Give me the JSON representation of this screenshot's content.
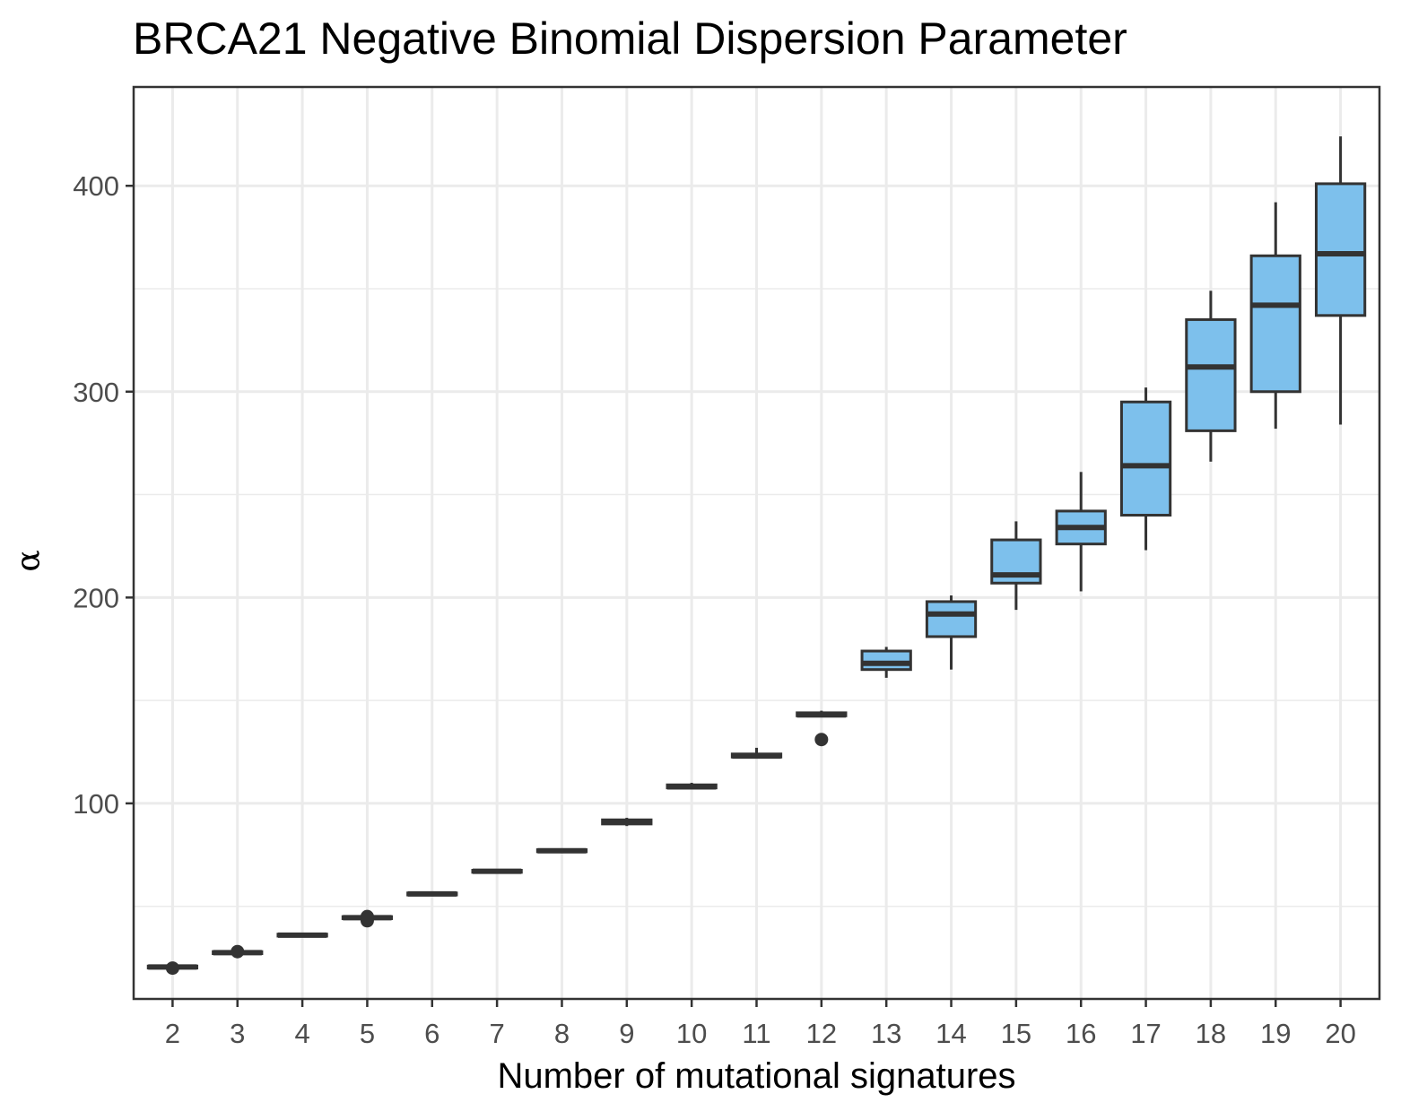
{
  "chart_data": {
    "type": "box",
    "title": "BRCA21 Negative Binomial Dispersion Parameter",
    "xlabel": "Number of mutational signatures",
    "ylabel": "α",
    "ylim": [
      5,
      448
    ],
    "yticks": [
      100,
      200,
      300,
      400
    ],
    "ytick_labels": [
      "100",
      "200",
      "300",
      "400"
    ],
    "grid": true,
    "fill_color": "#7dc0ec",
    "line_color": "#333333",
    "categories": [
      "2",
      "3",
      "4",
      "5",
      "6",
      "7",
      "8",
      "9",
      "10",
      "11",
      "12",
      "13",
      "14",
      "15",
      "16",
      "17",
      "18",
      "19",
      "20"
    ],
    "boxes": [
      {
        "x": "2",
        "min": 19,
        "q1": 20,
        "median": 20.5,
        "q3": 21,
        "max": 22,
        "outliers": [
          20
        ]
      },
      {
        "x": "3",
        "min": 26,
        "q1": 27,
        "median": 27.5,
        "q3": 28,
        "max": 29,
        "outliers": [
          28
        ]
      },
      {
        "x": "4",
        "min": 35,
        "q1": 35.5,
        "median": 36,
        "q3": 36.5,
        "max": 37,
        "outliers": []
      },
      {
        "x": "5",
        "min": 43,
        "q1": 44,
        "median": 44.5,
        "q3": 45,
        "max": 46,
        "outliers": [
          43,
          45
        ]
      },
      {
        "x": "6",
        "min": 55,
        "q1": 55.5,
        "median": 56,
        "q3": 56.5,
        "max": 57,
        "outliers": []
      },
      {
        "x": "7",
        "min": 66,
        "q1": 66.5,
        "median": 67,
        "q3": 67.5,
        "max": 68,
        "outliers": []
      },
      {
        "x": "8",
        "min": 76,
        "q1": 76.5,
        "median": 77,
        "q3": 77.5,
        "max": 78,
        "outliers": []
      },
      {
        "x": "9",
        "min": 89,
        "q1": 90,
        "median": 91,
        "q3": 92,
        "max": 93,
        "outliers": []
      },
      {
        "x": "10",
        "min": 107,
        "q1": 107.5,
        "median": 108,
        "q3": 109,
        "max": 110,
        "outliers": []
      },
      {
        "x": "11",
        "min": 122,
        "q1": 122.5,
        "median": 123,
        "q3": 124,
        "max": 127,
        "outliers": []
      },
      {
        "x": "12",
        "min": 142,
        "q1": 142.5,
        "median": 143,
        "q3": 144,
        "max": 145,
        "outliers": [
          131
        ]
      },
      {
        "x": "13",
        "min": 161,
        "q1": 165,
        "median": 168,
        "q3": 174,
        "max": 176,
        "outliers": []
      },
      {
        "x": "14",
        "min": 165,
        "q1": 181,
        "median": 192,
        "q3": 198,
        "max": 201,
        "outliers": []
      },
      {
        "x": "15",
        "min": 194,
        "q1": 207,
        "median": 211,
        "q3": 228,
        "max": 237,
        "outliers": []
      },
      {
        "x": "16",
        "min": 203,
        "q1": 226,
        "median": 234,
        "q3": 242,
        "max": 261,
        "outliers": []
      },
      {
        "x": "17",
        "min": 223,
        "q1": 240,
        "median": 264,
        "q3": 295,
        "max": 302,
        "outliers": []
      },
      {
        "x": "18",
        "min": 266,
        "q1": 281,
        "median": 312,
        "q3": 335,
        "max": 349,
        "outliers": []
      },
      {
        "x": "19",
        "min": 282,
        "q1": 300,
        "median": 342,
        "q3": 366,
        "max": 392,
        "outliers": []
      },
      {
        "x": "20",
        "min": 284,
        "q1": 337,
        "median": 367,
        "q3": 401,
        "max": 424,
        "outliers": []
      }
    ]
  }
}
